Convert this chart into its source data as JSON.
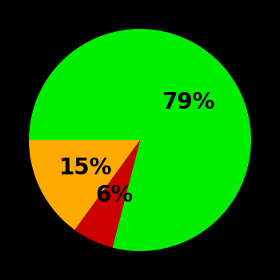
{
  "slices": [
    79,
    6,
    15
  ],
  "colors": [
    "#00ee00",
    "#cc0000",
    "#ffaa00"
  ],
  "labels": [
    "79%",
    "6%",
    "15%"
  ],
  "background_color": "#000000",
  "startangle": 180,
  "label_fontsize": 20,
  "label_color": "#000000",
  "label_radii": [
    0.55,
    0.55,
    0.55
  ],
  "figsize": [
    3.5,
    3.5
  ],
  "dpi": 100
}
